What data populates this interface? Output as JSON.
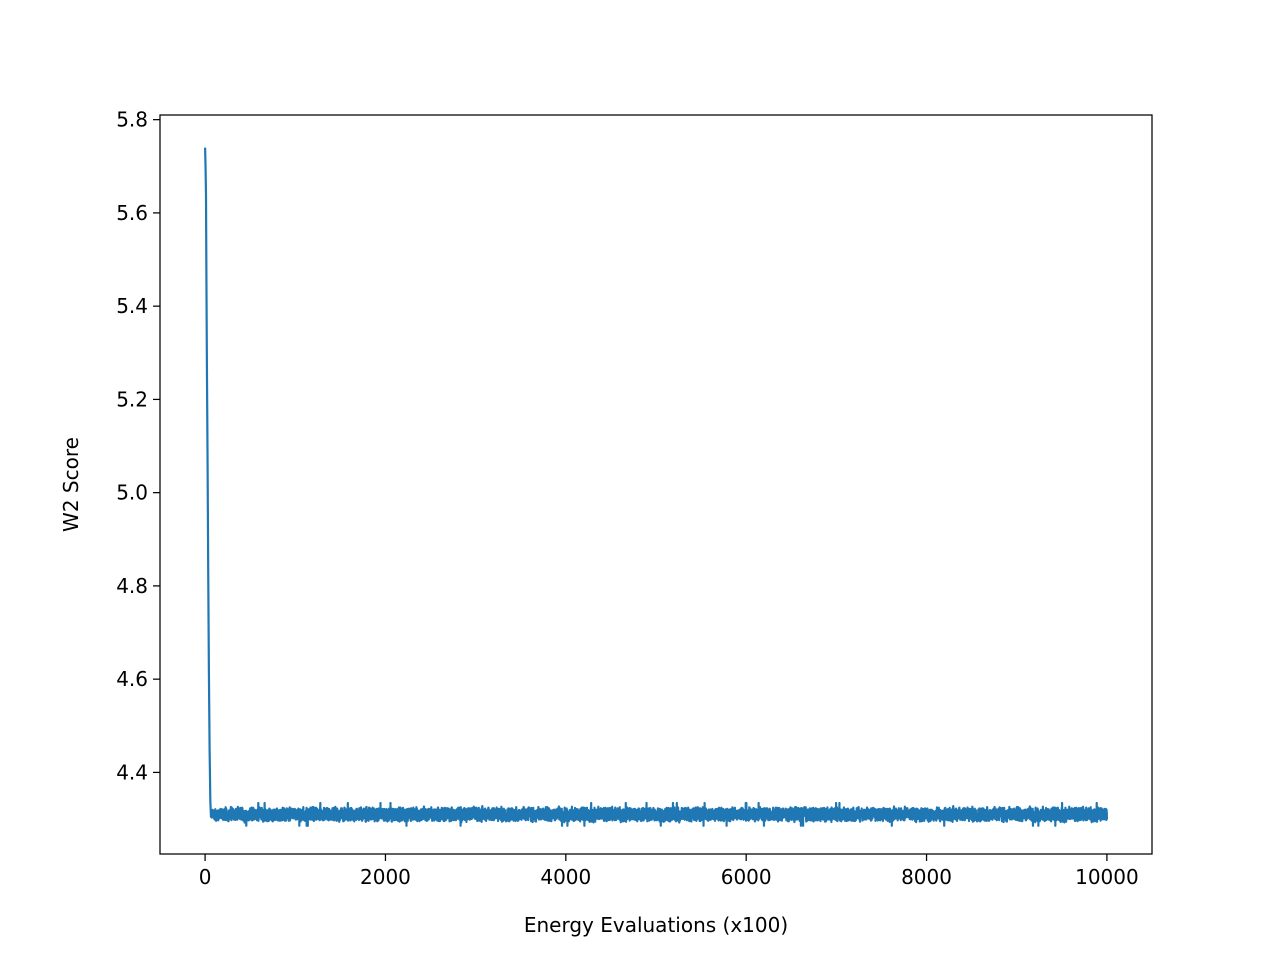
{
  "chart_data": {
    "type": "line",
    "title": "",
    "xlabel": "Energy Evaluations (x100)",
    "ylabel": "W2 Score",
    "xlim": [
      -500,
      10500
    ],
    "ylim": [
      4.225,
      5.81
    ],
    "xticks": [
      0,
      2000,
      4000,
      6000,
      8000,
      10000
    ],
    "xtick_labels": [
      "0",
      "2000",
      "4000",
      "6000",
      "8000",
      "10000"
    ],
    "yticks": [
      4.4,
      4.6,
      4.8,
      5.0,
      5.2,
      5.4,
      5.6,
      5.8
    ],
    "ytick_labels": [
      "4.4",
      "4.6",
      "4.8",
      "5.0",
      "5.2",
      "5.4",
      "5.6",
      "5.8"
    ],
    "grid": false,
    "legend": null,
    "series": [
      {
        "color": "#1f77b4",
        "x_start": 0,
        "x_end": 10000,
        "num_points": 10000,
        "initial_points": [
          {
            "x": 0,
            "y": 5.74
          },
          {
            "x": 5,
            "y": 5.7
          },
          {
            "x": 10,
            "y": 5.64
          },
          {
            "x": 15,
            "y": 5.45
          },
          {
            "x": 20,
            "y": 5.28
          },
          {
            "x": 28,
            "y": 5.05
          },
          {
            "x": 35,
            "y": 4.82
          },
          {
            "x": 42,
            "y": 4.62
          },
          {
            "x": 50,
            "y": 4.45
          },
          {
            "x": 58,
            "y": 4.34
          },
          {
            "x": 65,
            "y": 4.305
          }
        ],
        "plateau_mean": 4.31,
        "plateau_min": 4.285,
        "plateau_max": 4.335
      }
    ]
  }
}
